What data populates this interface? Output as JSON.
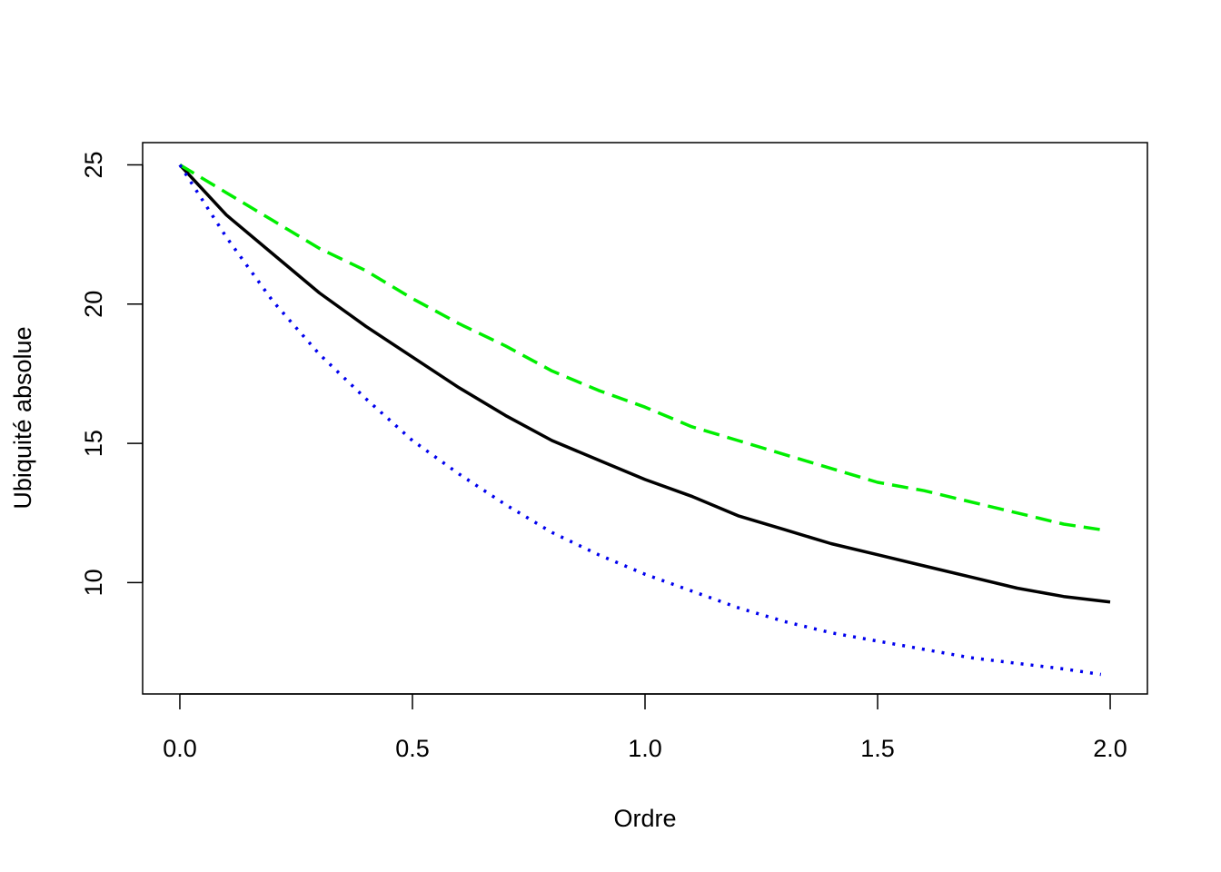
{
  "chart_data": {
    "type": "line",
    "title": "",
    "xlabel": "Ordre",
    "ylabel": "Ubiquité absolue",
    "xlim": [
      -0.08,
      2.08
    ],
    "ylim": [
      6.0,
      25.8
    ],
    "xticks": [
      "0.0",
      "0.5",
      "1.0",
      "1.5",
      "2.0"
    ],
    "yticks": [
      "10",
      "15",
      "20",
      "25"
    ],
    "xtick_values": [
      0.0,
      0.5,
      1.0,
      1.5,
      2.0
    ],
    "ytick_values": [
      10,
      15,
      20,
      25
    ],
    "grid": false,
    "legend": "none",
    "series": [
      {
        "color": "#000000",
        "style": "solid",
        "x": [
          0.0,
          0.1,
          0.2,
          0.3,
          0.4,
          0.5,
          0.6,
          0.7,
          0.8,
          0.9,
          1.0,
          1.1,
          1.2,
          1.3,
          1.4,
          1.5,
          1.6,
          1.7,
          1.8,
          1.9,
          2.0
        ],
        "values": [
          25.0,
          23.2,
          21.8,
          20.4,
          19.2,
          18.1,
          17.0,
          16.0,
          15.1,
          14.4,
          13.7,
          13.1,
          12.4,
          11.9,
          11.4,
          11.0,
          10.6,
          10.2,
          9.8,
          9.5,
          9.3
        ]
      },
      {
        "color": "#00ee00",
        "style": "dashed",
        "x": [
          0.0,
          0.1,
          0.2,
          0.3,
          0.4,
          0.5,
          0.6,
          0.7,
          0.8,
          0.9,
          1.0,
          1.1,
          1.2,
          1.3,
          1.4,
          1.5,
          1.6,
          1.7,
          1.8,
          1.9,
          1.98
        ],
        "values": [
          25.0,
          24.0,
          23.0,
          22.0,
          21.2,
          20.2,
          19.3,
          18.5,
          17.6,
          16.9,
          16.3,
          15.6,
          15.1,
          14.6,
          14.1,
          13.6,
          13.3,
          12.9,
          12.5,
          12.1,
          11.9
        ]
      },
      {
        "color": "#0000ee",
        "style": "dotted",
        "x": [
          0.0,
          0.1,
          0.2,
          0.3,
          0.4,
          0.5,
          0.6,
          0.7,
          0.8,
          0.9,
          1.0,
          1.1,
          1.2,
          1.3,
          1.4,
          1.5,
          1.6,
          1.7,
          1.8,
          1.9,
          1.98
        ],
        "values": [
          25.0,
          22.4,
          20.1,
          18.2,
          16.6,
          15.1,
          13.9,
          12.8,
          11.8,
          11.0,
          10.3,
          9.7,
          9.1,
          8.6,
          8.2,
          7.9,
          7.6,
          7.3,
          7.1,
          6.9,
          6.7
        ]
      }
    ]
  }
}
